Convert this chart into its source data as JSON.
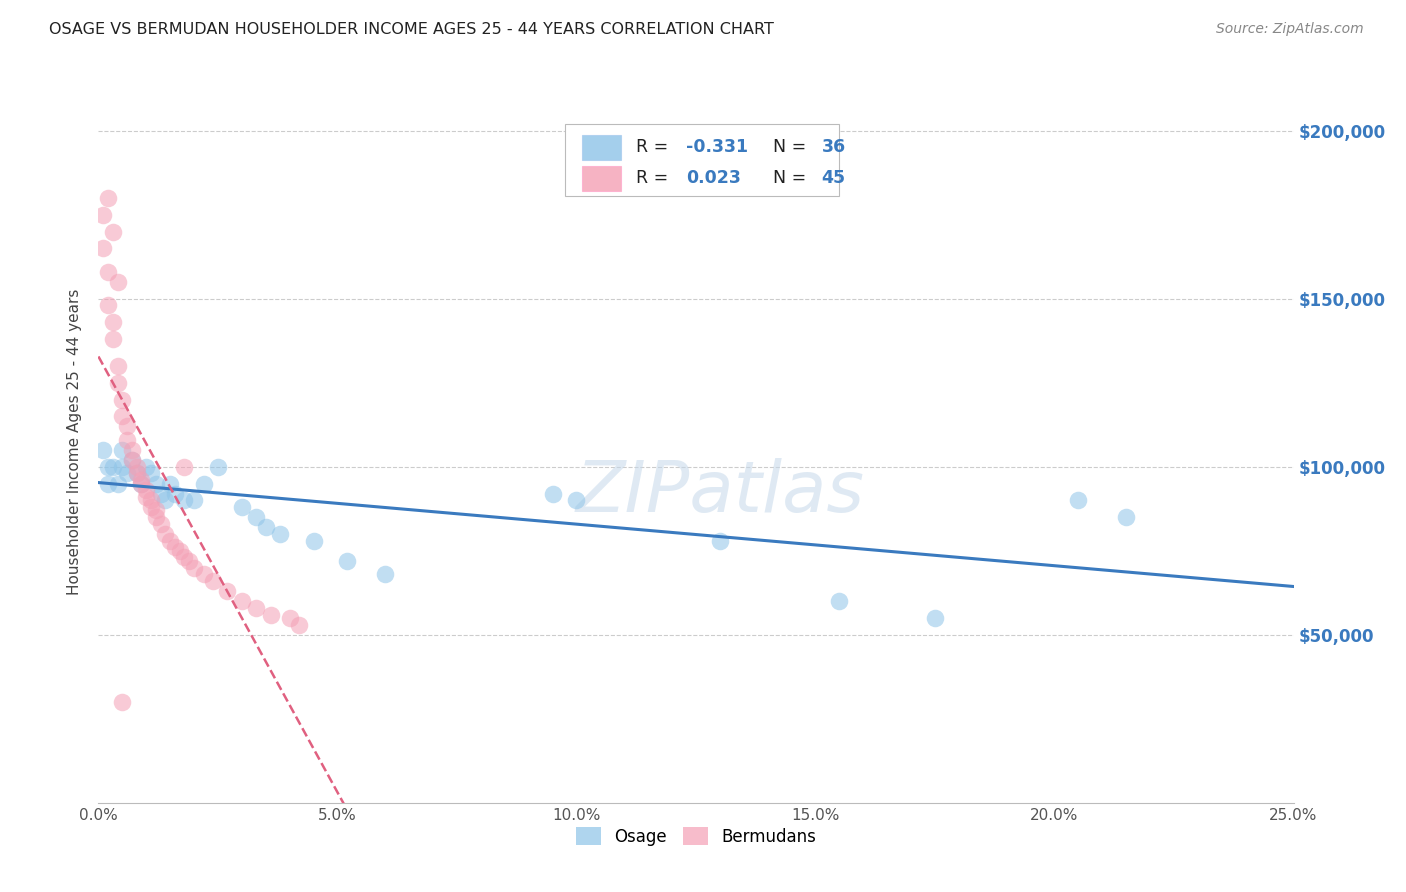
{
  "title": "OSAGE VS BERMUDAN HOUSEHOLDER INCOME AGES 25 - 44 YEARS CORRELATION CHART",
  "source": "Source: ZipAtlas.com",
  "xlabel_ticks": [
    "0.0%",
    "5.0%",
    "10.0%",
    "15.0%",
    "20.0%",
    "25.0%"
  ],
  "xlabel_vals": [
    0.0,
    0.05,
    0.1,
    0.15,
    0.2,
    0.25
  ],
  "ylabel_ticks": [
    "$50,000",
    "$100,000",
    "$150,000",
    "$200,000"
  ],
  "ylabel_vals": [
    50000,
    100000,
    150000,
    200000
  ],
  "ylabel_label": "Householder Income Ages 25 - 44 years",
  "legend_osage": "Osage",
  "legend_bermudans": "Bermudans",
  "r_osage": "-0.331",
  "n_osage": "36",
  "r_bermudans": "0.023",
  "n_bermudans": "45",
  "blue_color": "#8ec4e8",
  "pink_color": "#f4a0b5",
  "blue_line_color": "#3a7abf",
  "pink_line_color": "#e06080",
  "watermark": "ZIPatlas",
  "background_color": "#ffffff",
  "grid_color": "#cccccc",
  "xmin": 0.0,
  "xmax": 0.25,
  "ymin": 0,
  "ymax": 215000,
  "osage_x": [
    0.001,
    0.002,
    0.002,
    0.003,
    0.004,
    0.005,
    0.005,
    0.006,
    0.007,
    0.008,
    0.009,
    0.01,
    0.011,
    0.012,
    0.013,
    0.014,
    0.015,
    0.016,
    0.018,
    0.02,
    0.022,
    0.025,
    0.03,
    0.033,
    0.035,
    0.038,
    0.045,
    0.052,
    0.06,
    0.095,
    0.1,
    0.13,
    0.155,
    0.175,
    0.205,
    0.215
  ],
  "osage_y": [
    105000,
    100000,
    95000,
    100000,
    95000,
    105000,
    100000,
    98000,
    102000,
    98000,
    95000,
    100000,
    98000,
    95000,
    92000,
    90000,
    95000,
    92000,
    90000,
    90000,
    95000,
    100000,
    88000,
    85000,
    82000,
    80000,
    78000,
    72000,
    68000,
    92000,
    90000,
    78000,
    60000,
    55000,
    90000,
    85000
  ],
  "bermudans_x": [
    0.001,
    0.001,
    0.002,
    0.002,
    0.003,
    0.003,
    0.004,
    0.004,
    0.005,
    0.005,
    0.006,
    0.006,
    0.007,
    0.007,
    0.008,
    0.008,
    0.009,
    0.009,
    0.01,
    0.01,
    0.011,
    0.011,
    0.012,
    0.012,
    0.013,
    0.014,
    0.015,
    0.016,
    0.017,
    0.018,
    0.019,
    0.02,
    0.022,
    0.024,
    0.027,
    0.03,
    0.033,
    0.036,
    0.04,
    0.042,
    0.018,
    0.005,
    0.004,
    0.002,
    0.003
  ],
  "bermudans_y": [
    175000,
    165000,
    158000,
    148000,
    143000,
    138000,
    130000,
    125000,
    120000,
    115000,
    112000,
    108000,
    105000,
    102000,
    100000,
    98000,
    96000,
    95000,
    93000,
    91000,
    90000,
    88000,
    87000,
    85000,
    83000,
    80000,
    78000,
    76000,
    75000,
    73000,
    72000,
    70000,
    68000,
    66000,
    63000,
    60000,
    58000,
    56000,
    55000,
    53000,
    100000,
    30000,
    155000,
    180000,
    170000
  ]
}
